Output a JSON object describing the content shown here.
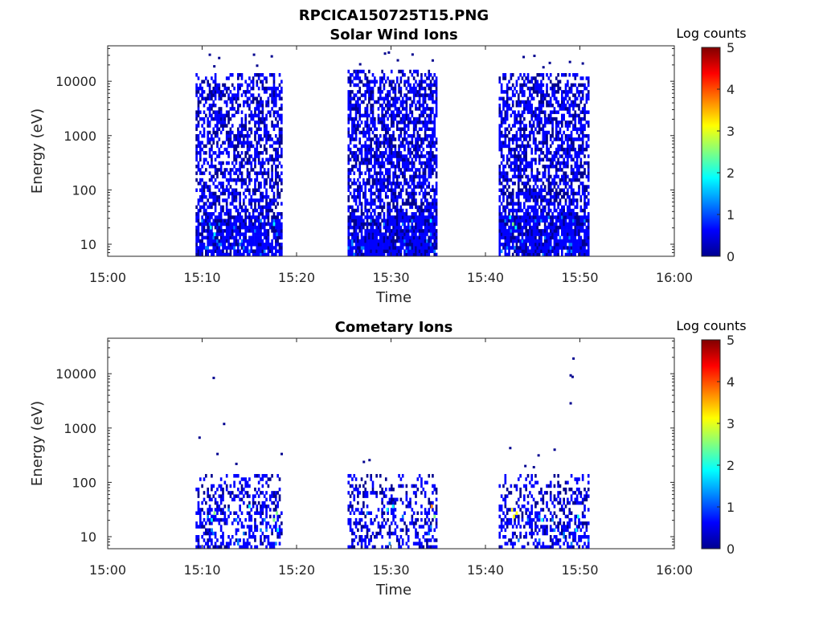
{
  "figure_title": "RPCICA150725T15.PNG",
  "colors": {
    "colormap": [
      "#00008f",
      "#0000ff",
      "#0080ff",
      "#00ffff",
      "#80ff80",
      "#ffff00",
      "#ff8000",
      "#ff0000",
      "#800000"
    ]
  },
  "chart_data": [
    {
      "type": "heatmap",
      "title": "Solar Wind Ions",
      "xlabel": "Time",
      "ylabel": "Energy (eV)",
      "x_ticks": [
        "15:00",
        "15:10",
        "15:20",
        "15:30",
        "15:40",
        "15:50",
        "16:00"
      ],
      "x_range_minutes": [
        0,
        60
      ],
      "y_scale": "log",
      "y_range": [
        6,
        45000
      ],
      "y_ticks": [
        10,
        100,
        1000,
        10000
      ],
      "y_tick_labels": [
        "10",
        "100",
        "1000",
        "10000"
      ],
      "colorbar": {
        "title": "Log counts",
        "range": [
          0,
          5
        ],
        "ticks": [
          "0",
          "1",
          "2",
          "3",
          "4",
          "5"
        ]
      },
      "blocks": [
        {
          "start_min": 9.3,
          "end_min": 18.5,
          "cols": 46,
          "top_energy": 14000,
          "density": 0.55,
          "low_density": 0.85,
          "seed": 11
        },
        {
          "start_min": 25.4,
          "end_min": 34.9,
          "cols": 48,
          "top_energy": 15000,
          "density": 0.62,
          "low_density": 0.9,
          "seed": 23
        },
        {
          "start_min": 41.4,
          "end_min": 51.0,
          "cols": 48,
          "top_energy": 14000,
          "density": 0.6,
          "low_density": 0.88,
          "seed": 37
        }
      ],
      "hotspots": [
        {
          "t_min": 10.9,
          "e": 20,
          "v": 2.0
        },
        {
          "t_min": 11.3,
          "e": 15,
          "v": 1.6
        },
        {
          "t_min": 17.6,
          "e": 25,
          "v": 1.8
        },
        {
          "t_min": 17.9,
          "e": 15,
          "v": 1.4
        },
        {
          "t_min": 34.2,
          "e": 28,
          "v": 1.8
        },
        {
          "t_min": 42.9,
          "e": 25,
          "v": 2.3
        },
        {
          "t_min": 43.2,
          "e": 20,
          "v": 2.0
        },
        {
          "t_min": 42.6,
          "e": 30,
          "v": 1.8
        }
      ]
    },
    {
      "type": "heatmap",
      "title": "Cometary Ions",
      "xlabel": "Time",
      "ylabel": "Energy (eV)",
      "x_ticks": [
        "15:00",
        "15:10",
        "15:20",
        "15:30",
        "15:40",
        "15:50",
        "16:00"
      ],
      "x_range_minutes": [
        0,
        60
      ],
      "y_scale": "log",
      "y_range": [
        6,
        45000
      ],
      "y_ticks": [
        10,
        100,
        1000,
        10000
      ],
      "y_tick_labels": [
        "10",
        "100",
        "1000",
        "10000"
      ],
      "colorbar": {
        "title": "Log counts",
        "range": [
          0,
          5
        ],
        "ticks": [
          "0",
          "1",
          "2",
          "3",
          "4",
          "5"
        ]
      },
      "blocks": [
        {
          "start_min": 9.3,
          "end_min": 18.5,
          "cols": 46,
          "top_energy": 130,
          "density": 0.35,
          "low_density": 0.45,
          "seed": 51
        },
        {
          "start_min": 25.4,
          "end_min": 34.9,
          "cols": 48,
          "top_energy": 130,
          "density": 0.3,
          "low_density": 0.35,
          "seed": 63
        },
        {
          "start_min": 41.4,
          "end_min": 51.0,
          "cols": 48,
          "top_energy": 130,
          "density": 0.35,
          "low_density": 0.45,
          "seed": 77
        }
      ],
      "hotspots": [
        {
          "t_min": 11.0,
          "e": 20,
          "v": 1.7
        },
        {
          "t_min": 11.0,
          "e": 14,
          "v": 1.4
        },
        {
          "t_min": 11.3,
          "e": 28,
          "v": 2.2
        },
        {
          "t_min": 13.6,
          "e": 20,
          "v": 1.2
        },
        {
          "t_min": 15.0,
          "e": 35,
          "v": 2.0
        },
        {
          "t_min": 17.6,
          "e": 20,
          "v": 2.6
        },
        {
          "t_min": 17.9,
          "e": 28,
          "v": 2.4
        },
        {
          "t_min": 18.0,
          "e": 14,
          "v": 1.8
        },
        {
          "t_min": 29.6,
          "e": 30,
          "v": 2.0
        },
        {
          "t_min": 30.2,
          "e": 35,
          "v": 1.8
        },
        {
          "t_min": 34.3,
          "e": 35,
          "v": 3.5
        },
        {
          "t_min": 34.6,
          "e": 25,
          "v": 2.2
        },
        {
          "t_min": 42.8,
          "e": 30,
          "v": 3.4
        },
        {
          "t_min": 43.0,
          "e": 22,
          "v": 3.2
        },
        {
          "t_min": 43.3,
          "e": 28,
          "v": 3.0
        },
        {
          "t_min": 46.0,
          "e": 20,
          "v": 2.0
        },
        {
          "t_min": 49.6,
          "e": 14,
          "v": 1.6
        },
        {
          "t_min": 49.8,
          "e": 22,
          "v": 2.0
        }
      ],
      "sparse_points": [
        {
          "t_min": 9.6,
          "e": 700
        },
        {
          "t_min": 11.1,
          "e": 8800
        },
        {
          "t_min": 11.5,
          "e": 350
        },
        {
          "t_min": 12.2,
          "e": 1250
        },
        {
          "t_min": 13.5,
          "e": 230
        },
        {
          "t_min": 18.3,
          "e": 350
        },
        {
          "t_min": 27.0,
          "e": 250
        },
        {
          "t_min": 27.6,
          "e": 270
        },
        {
          "t_min": 42.5,
          "e": 450
        },
        {
          "t_min": 44.1,
          "e": 210
        },
        {
          "t_min": 45.0,
          "e": 200
        },
        {
          "t_min": 45.5,
          "e": 330
        },
        {
          "t_min": 47.2,
          "e": 420
        },
        {
          "t_min": 48.9,
          "e": 9800
        },
        {
          "t_min": 49.1,
          "e": 9200
        },
        {
          "t_min": 48.9,
          "e": 3000
        },
        {
          "t_min": 49.2,
          "e": 20000
        }
      ]
    }
  ]
}
